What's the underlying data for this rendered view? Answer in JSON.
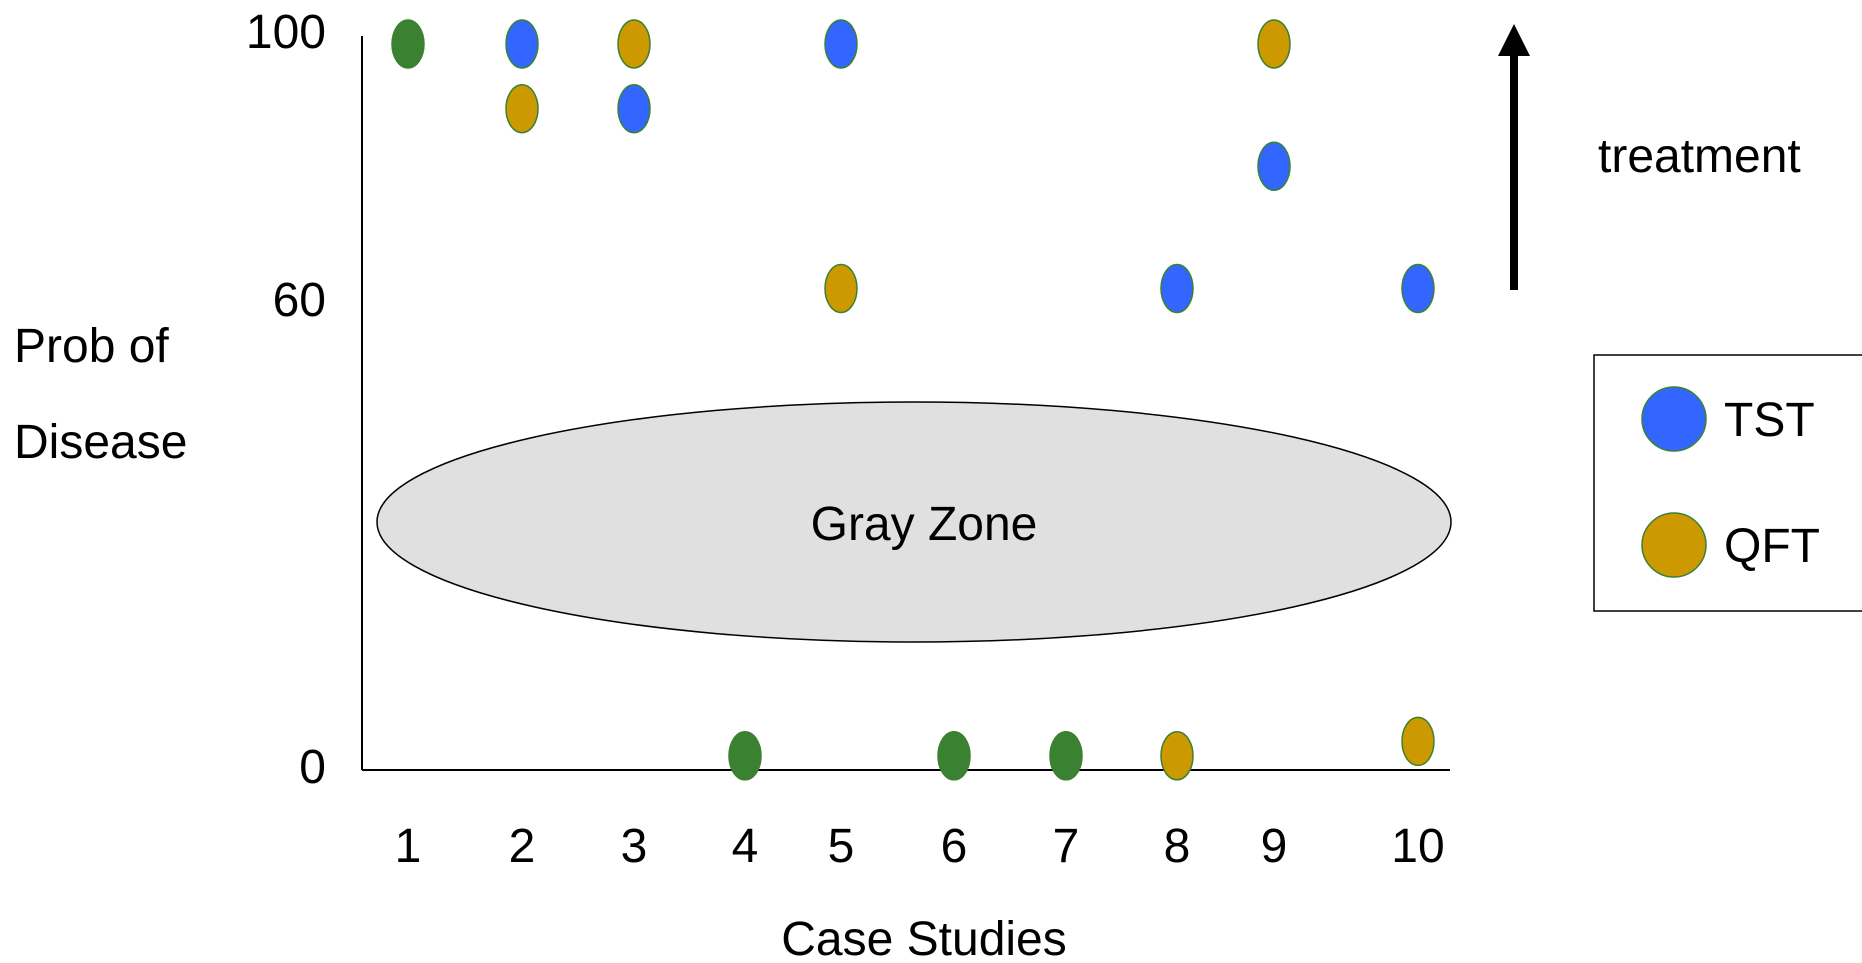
{
  "chart_data": {
    "type": "scatter",
    "xlabel": "Case Studies",
    "ylabel_lines": [
      "Prob of",
      "Disease"
    ],
    "x_ticks": [
      "1",
      "2",
      "3",
      "4",
      "5",
      "6",
      "7",
      "8",
      "9",
      "10"
    ],
    "y_ticks": [
      0,
      60,
      100
    ],
    "xlim": [
      1,
      10
    ],
    "ylim": [
      0,
      100
    ],
    "grid": false,
    "legend_position": "right",
    "annotations": {
      "gray_zone": "Gray Zone",
      "arrow_label": "treatment"
    },
    "series": [
      {
        "name": "TST",
        "color": "#3366ff",
        "points": [
          {
            "x": 2,
            "y": 100
          },
          {
            "x": 3,
            "y": 91
          },
          {
            "x": 5,
            "y": 100
          },
          {
            "x": 8,
            "y": 66
          },
          {
            "x": 9,
            "y": 83
          },
          {
            "x": 10,
            "y": 66
          }
        ]
      },
      {
        "name": "QFT",
        "color": "#cc9900",
        "points": [
          {
            "x": 2,
            "y": 91
          },
          {
            "x": 3,
            "y": 100
          },
          {
            "x": 5,
            "y": 66
          },
          {
            "x": 8,
            "y": 1
          },
          {
            "x": 9,
            "y": 100
          },
          {
            "x": 10,
            "y": 3
          }
        ]
      },
      {
        "color": "#3b8132",
        "points": [
          {
            "x": 1,
            "y": 100
          },
          {
            "x": 4,
            "y": 1
          },
          {
            "x": 6,
            "y": 1
          },
          {
            "x": 7,
            "y": 1
          }
        ]
      }
    ]
  }
}
